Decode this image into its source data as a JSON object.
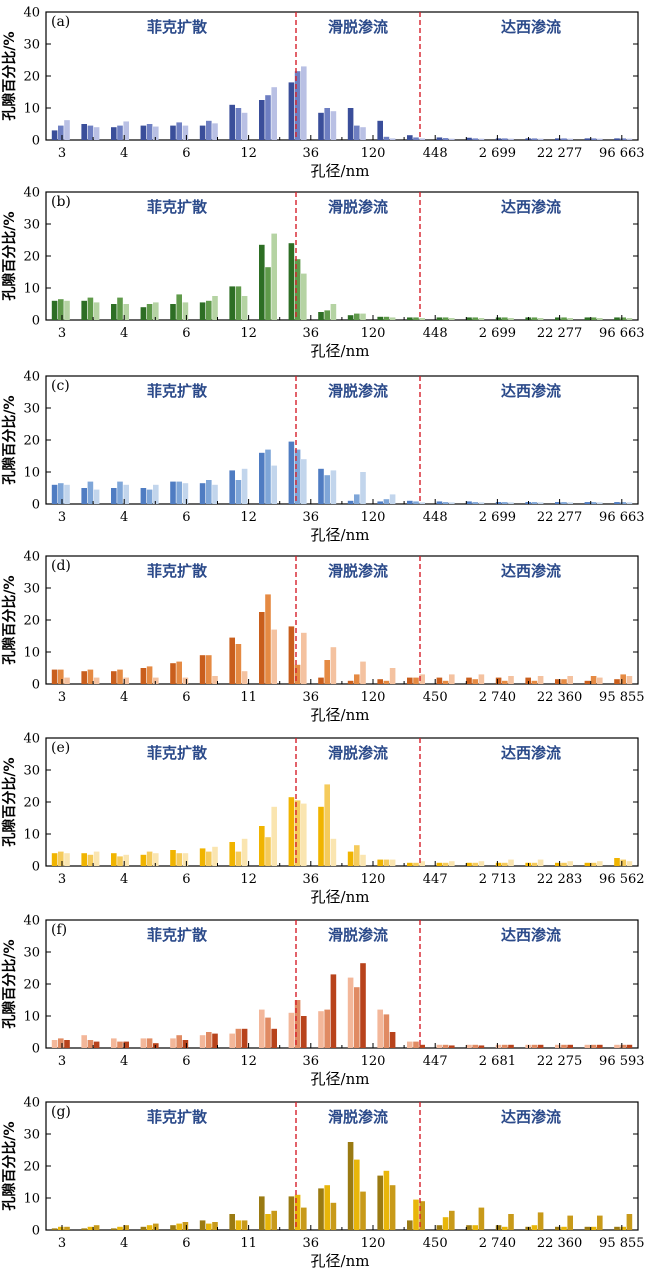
{
  "figure": {
    "ylabel": "孔隙百分比/%",
    "xlabel": "孔径/nm",
    "regions": [
      "菲克扩散",
      "滑脱渗流",
      "达西渗流"
    ]
  },
  "chart_data": [
    {
      "type": "bar",
      "panel": "(a)",
      "colors": [
        "#3a4e9a",
        "#6e7fc2",
        "#b9c0e4"
      ],
      "ylim": [
        0,
        40
      ],
      "yticks": [
        0,
        10,
        20,
        30,
        40
      ],
      "xtick_labels": [
        "3",
        "4",
        "6",
        "12",
        "36",
        "120",
        "448",
        "2 699",
        "22 277",
        "96 663"
      ],
      "group_values": [
        [
          3,
          4.5,
          6.2
        ],
        [
          5,
          4.5,
          4
        ],
        [
          4,
          4.5,
          5.8
        ],
        [
          4.5,
          5,
          4.2
        ],
        [
          4.5,
          5.5,
          4.5
        ],
        [
          4.5,
          6,
          5.2
        ],
        [
          11,
          10,
          8.5
        ],
        [
          12.5,
          14,
          16.5
        ],
        [
          18,
          21.5,
          23
        ],
        [
          8.5,
          10,
          9
        ],
        [
          10,
          4.5,
          4
        ],
        [
          6,
          1,
          0.5
        ],
        [
          1.5,
          0.8,
          0.5
        ],
        [
          0.8,
          0.6,
          0.4
        ],
        [
          0.7,
          0.5,
          0.4
        ],
        [
          0.5,
          0.5,
          0.4
        ],
        [
          0.5,
          0.5,
          0.4
        ],
        [
          0.5,
          0.5,
          0.4
        ],
        [
          0.5,
          0.5,
          0.4
        ],
        [
          0.5,
          0.5,
          0.4
        ]
      ]
    },
    {
      "type": "bar",
      "panel": "(b)",
      "colors": [
        "#2d6e24",
        "#5f9a4a",
        "#b5d3a3"
      ],
      "ylim": [
        0,
        40
      ],
      "yticks": [
        0,
        10,
        20,
        30,
        40
      ],
      "xtick_labels": [
        "3",
        "4",
        "6",
        "12",
        "36",
        "120",
        "448",
        "2 699",
        "22 277",
        "96 663"
      ],
      "group_values": [
        [
          6,
          6.5,
          6
        ],
        [
          6,
          7,
          5.5
        ],
        [
          5,
          7,
          5
        ],
        [
          4,
          5,
          5.5
        ],
        [
          5,
          8,
          5.5
        ],
        [
          5.5,
          6,
          7.5
        ],
        [
          10.5,
          10.5,
          7.5
        ],
        [
          23.5,
          16.5,
          27
        ],
        [
          24,
          19,
          14.5
        ],
        [
          2.5,
          3,
          5
        ],
        [
          1.5,
          2,
          2
        ],
        [
          1,
          1,
          0.8
        ],
        [
          0.8,
          0.8,
          0.6
        ],
        [
          0.8,
          0.8,
          0.6
        ],
        [
          0.8,
          0.8,
          0.6
        ],
        [
          0.8,
          0.8,
          0.6
        ],
        [
          0.8,
          0.8,
          0.6
        ],
        [
          0.8,
          0.8,
          0.6
        ],
        [
          0.8,
          0.8,
          0.6
        ],
        [
          0.8,
          0.8,
          0.6
        ]
      ]
    },
    {
      "type": "bar",
      "panel": "(c)",
      "colors": [
        "#4f7cc2",
        "#7fa6d8",
        "#c2d5ec"
      ],
      "ylim": [
        0,
        40
      ],
      "yticks": [
        0,
        10,
        20,
        30,
        40
      ],
      "xtick_labels": [
        "3",
        "4",
        "6",
        "12",
        "36",
        "120",
        "448",
        "2 699",
        "22 277",
        "96 663"
      ],
      "group_values": [
        [
          6,
          6.5,
          6
        ],
        [
          5,
          7,
          4.5
        ],
        [
          5,
          7,
          6
        ],
        [
          5,
          4.5,
          6
        ],
        [
          7,
          7,
          6.5
        ],
        [
          6.5,
          7.5,
          6
        ],
        [
          10.5,
          7.5,
          11
        ],
        [
          16,
          17,
          12
        ],
        [
          19.5,
          17,
          14
        ],
        [
          11,
          9,
          10.5
        ],
        [
          1,
          3,
          10
        ],
        [
          0.8,
          1.5,
          3
        ],
        [
          1,
          0.8,
          0.5
        ],
        [
          0.8,
          0.6,
          0.5
        ],
        [
          0.8,
          0.6,
          0.5
        ],
        [
          0.6,
          0.6,
          0.5
        ],
        [
          0.6,
          0.6,
          0.5
        ],
        [
          0.6,
          0.6,
          0.5
        ],
        [
          0.6,
          0.6,
          0.5
        ],
        [
          0.6,
          0.6,
          0.5
        ]
      ]
    },
    {
      "type": "bar",
      "panel": "(d)",
      "colors": [
        "#c95e1c",
        "#e58a43",
        "#f4c2a0"
      ],
      "ylim": [
        0,
        40
      ],
      "yticks": [
        0,
        10,
        20,
        30,
        40
      ],
      "xtick_labels": [
        "3",
        "4",
        "6",
        "11",
        "36",
        "120",
        "450",
        "2 740",
        "22 360",
        "95 855"
      ],
      "group_values": [
        [
          4.5,
          4.5,
          2
        ],
        [
          4,
          4.5,
          2
        ],
        [
          4,
          4.5,
          2
        ],
        [
          5,
          5.5,
          2
        ],
        [
          6.5,
          7,
          2
        ],
        [
          9,
          9,
          2.5
        ],
        [
          14.5,
          12.5,
          4
        ],
        [
          22.5,
          28,
          17
        ],
        [
          18,
          6,
          16
        ],
        [
          2,
          7.5,
          11.5
        ],
        [
          1,
          3,
          7
        ],
        [
          1.5,
          1,
          5
        ],
        [
          2,
          2,
          3
        ],
        [
          2,
          1,
          3
        ],
        [
          2,
          1.5,
          3
        ],
        [
          2,
          1,
          2.5
        ],
        [
          2,
          1,
          2.5
        ],
        [
          1.5,
          1.5,
          2.5
        ],
        [
          1,
          2.5,
          2
        ],
        [
          1.5,
          3,
          2.5
        ]
      ]
    },
    {
      "type": "bar",
      "panel": "(e)",
      "colors": [
        "#f0b400",
        "#f5cb5c",
        "#fae5b0"
      ],
      "ylim": [
        0,
        40
      ],
      "yticks": [
        0,
        10,
        20,
        30,
        40
      ],
      "xtick_labels": [
        "3",
        "4",
        "6",
        "12",
        "36",
        "120",
        "447",
        "2 713",
        "22 283",
        "96 562"
      ],
      "group_values": [
        [
          4,
          4.5,
          4
        ],
        [
          4,
          3.5,
          4.5
        ],
        [
          4,
          3,
          3.5
        ],
        [
          3.5,
          4.5,
          4
        ],
        [
          5,
          4,
          4
        ],
        [
          5.5,
          4.5,
          6
        ],
        [
          7.5,
          4.5,
          8.5
        ],
        [
          12.5,
          9,
          18.5
        ],
        [
          21.5,
          20.5,
          19.5
        ],
        [
          18.5,
          25.5,
          8.5
        ],
        [
          4.5,
          6.5,
          3.5
        ],
        [
          2,
          2,
          2
        ],
        [
          1,
          1,
          1.5
        ],
        [
          1,
          1,
          1.5
        ],
        [
          1,
          1,
          1.5
        ],
        [
          1,
          1,
          2
        ],
        [
          1,
          1,
          2
        ],
        [
          1,
          1,
          1.5
        ],
        [
          1,
          1,
          1.5
        ],
        [
          2.5,
          2,
          1.5
        ]
      ]
    },
    {
      "type": "bar",
      "panel": "(f)",
      "colors": [
        "#f3b79a",
        "#e08a62",
        "#b8431c"
      ],
      "ylim": [
        0,
        40
      ],
      "yticks": [
        0,
        10,
        20,
        30,
        40
      ],
      "xtick_labels": [
        "3",
        "4",
        "6",
        "12",
        "36",
        "120",
        "447",
        "2 681",
        "22 275",
        "96 593"
      ],
      "group_values": [
        [
          2.5,
          3,
          2.5
        ],
        [
          4,
          2.5,
          2
        ],
        [
          3,
          2,
          2
        ],
        [
          3,
          3,
          1.5
        ],
        [
          3,
          4,
          2.5
        ],
        [
          4,
          5,
          4.5
        ],
        [
          4.5,
          6,
          6
        ],
        [
          12,
          9.5,
          6
        ],
        [
          11,
          15,
          10
        ],
        [
          11.5,
          12,
          23
        ],
        [
          22,
          19,
          26.5
        ],
        [
          12,
          10.5,
          5
        ],
        [
          2,
          2,
          1
        ],
        [
          1,
          1,
          0.8
        ],
        [
          1,
          1,
          0.8
        ],
        [
          1,
          1,
          1
        ],
        [
          1,
          1,
          1
        ],
        [
          1,
          1,
          1
        ],
        [
          1,
          1,
          1
        ],
        [
          1,
          1,
          1
        ]
      ]
    },
    {
      "type": "bar",
      "panel": "(g)",
      "colors": [
        "#9a7a12",
        "#e8b60a",
        "#c89a1a"
      ],
      "ylim": [
        0,
        40
      ],
      "yticks": [
        0,
        10,
        20,
        30,
        40
      ],
      "xtick_labels": [
        "3",
        "4",
        "6",
        "11",
        "36",
        "120",
        "450",
        "2 740",
        "22 360",
        "95 855"
      ],
      "group_values": [
        [
          0.5,
          1,
          1
        ],
        [
          0.5,
          1,
          1.5
        ],
        [
          0.5,
          1,
          1.5
        ],
        [
          1,
          1.5,
          2
        ],
        [
          1.5,
          2,
          2.5
        ],
        [
          3,
          2,
          2.5
        ],
        [
          5,
          3,
          3
        ],
        [
          10.5,
          5,
          6
        ],
        [
          10.5,
          11,
          7
        ],
        [
          13,
          14,
          8.5
        ],
        [
          27.5,
          22,
          12
        ],
        [
          17,
          18.5,
          14
        ],
        [
          3,
          9.5,
          9
        ],
        [
          1.5,
          4,
          6
        ],
        [
          1.5,
          1.5,
          7
        ],
        [
          1.5,
          1,
          5
        ],
        [
          1,
          1.5,
          5.5
        ],
        [
          1,
          1,
          4.5
        ],
        [
          1,
          1,
          4.5
        ],
        [
          1,
          1,
          5
        ]
      ]
    }
  ]
}
